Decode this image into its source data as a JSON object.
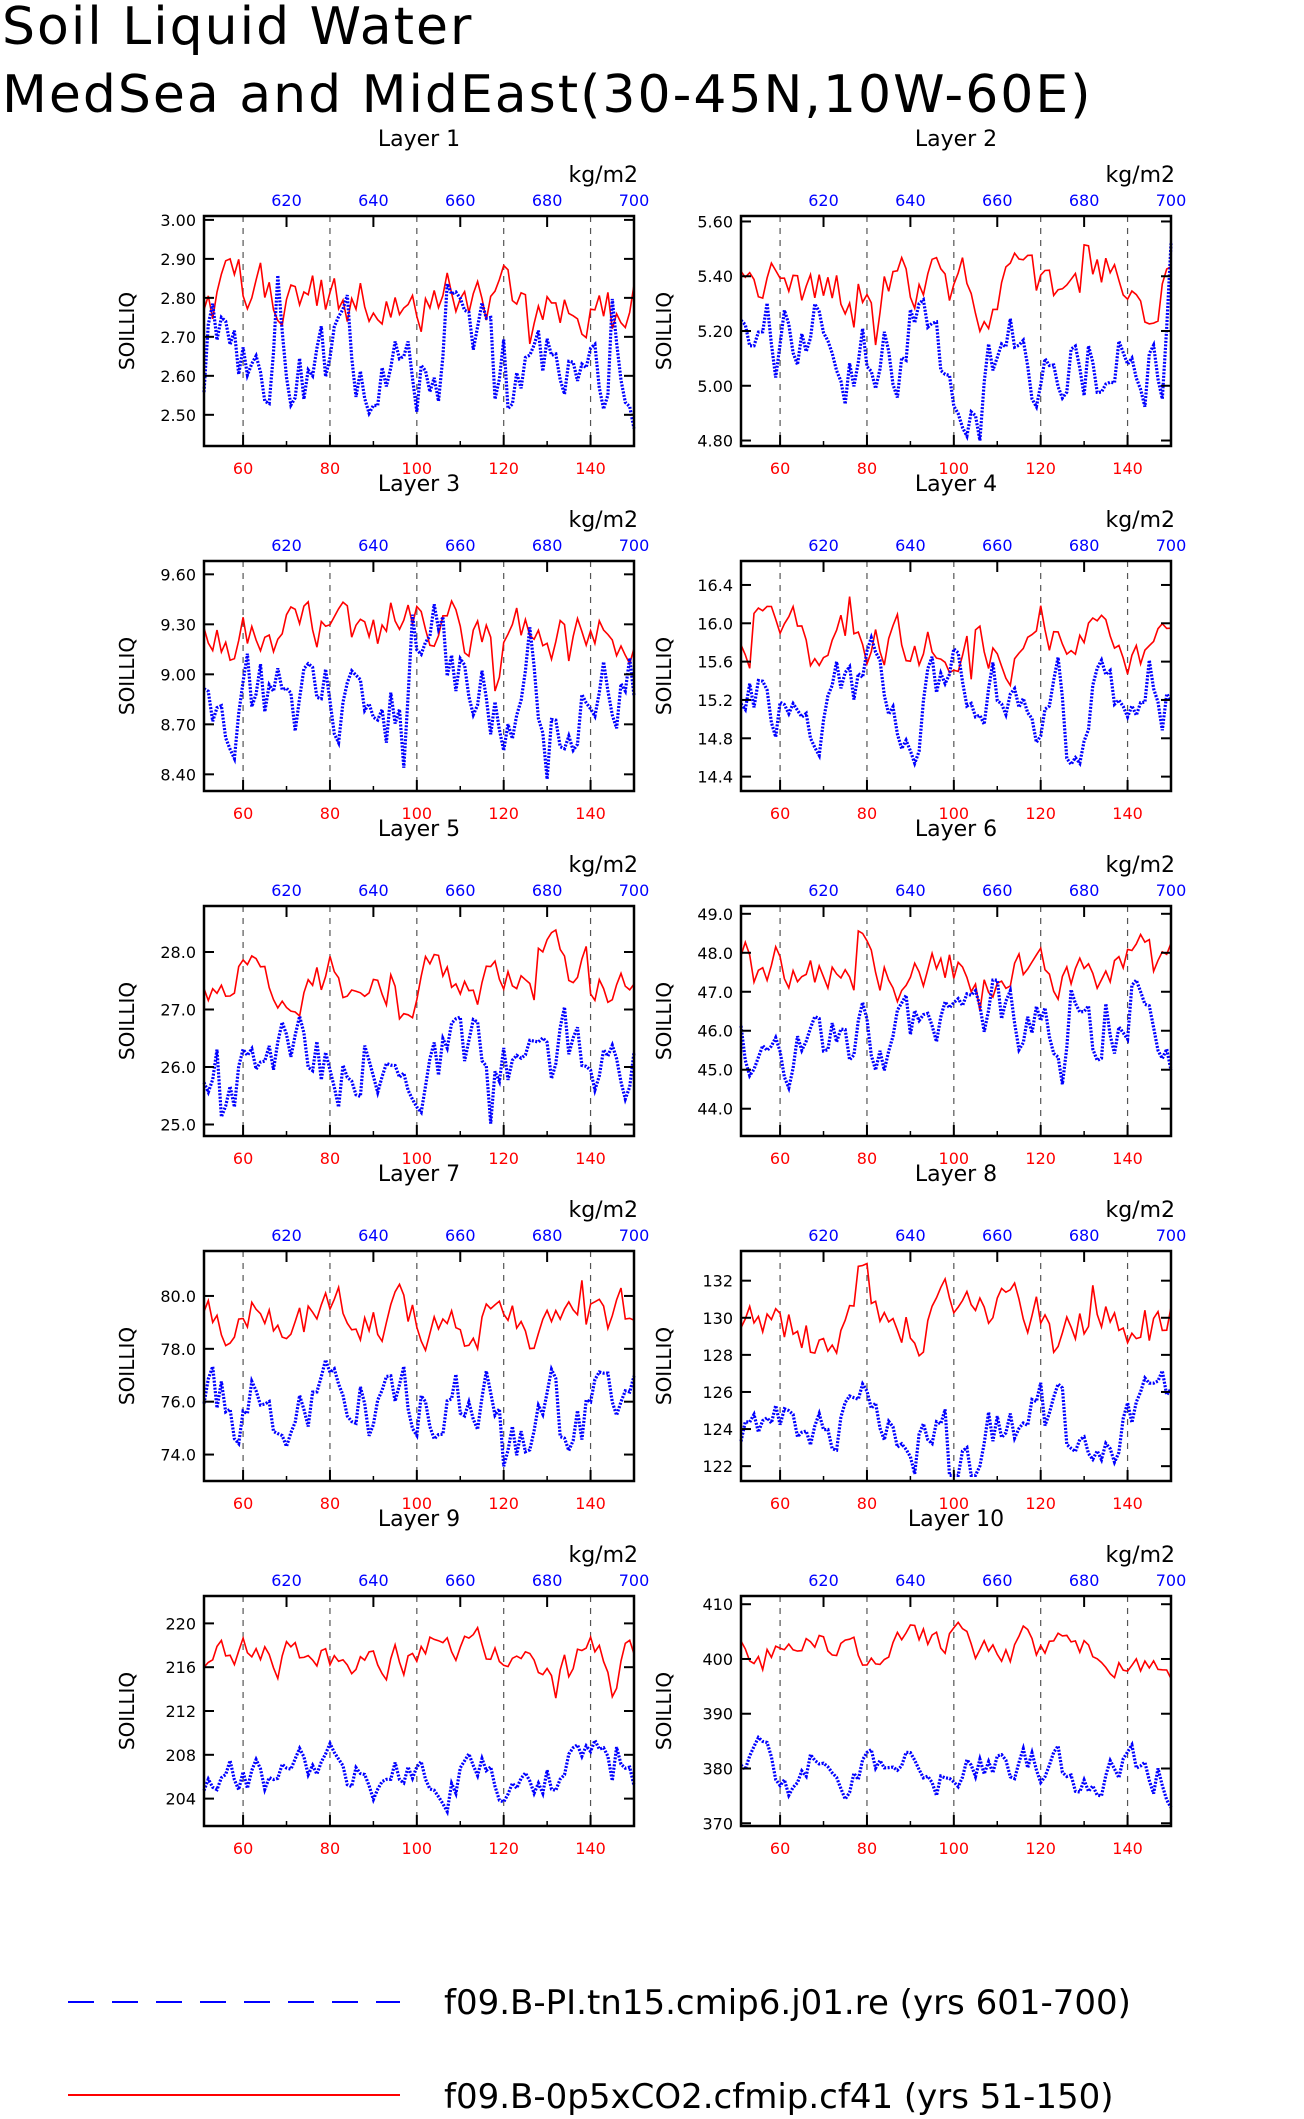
{
  "title_line1": "Soil Liquid Water",
  "title_line2": "MedSea and MidEast(30-45N,10W-60E)",
  "units": "kg/m2",
  "ylabel": "SOILLIQ",
  "colors": {
    "bottom_series": "#ff0000",
    "top_series": "#0000ff",
    "grid": "#000000"
  },
  "bottom_axis": {
    "range": [
      51,
      150
    ],
    "ticks": [
      60,
      80,
      100,
      120,
      140
    ]
  },
  "top_axis": {
    "range": [
      601,
      700
    ],
    "ticks": [
      620,
      640,
      660,
      680,
      700
    ]
  },
  "legend": {
    "blue_label": "f09.B-PI.tn15.cmip6.j01.re (yrs 601-700)",
    "red_label": "f09.B-0p5xCO2.cfmip.cf41 (yrs 51-150)"
  },
  "chart_data": [
    {
      "type": "line",
      "title": "Layer 1",
      "ylim": [
        2.42,
        3.01
      ],
      "yticks": [
        "2.50",
        "2.60",
        "2.70",
        "2.80",
        "2.90",
        "3.00"
      ],
      "series": [
        {
          "name": "f09.B-PI.tn15.cmip6.j01.re (yrs 601-700)",
          "axis": "top",
          "y0": 2.62,
          "spread": 0.11,
          "lo": 2.44,
          "hi": 2.93,
          "seed": 11
        },
        {
          "name": "f09.B-0p5xCO2.cfmip.cf41 (yrs 51-150)",
          "axis": "bottom",
          "y0": 2.8,
          "spread": 0.07,
          "lo": 2.58,
          "hi": 2.98,
          "seed": 12
        }
      ]
    },
    {
      "type": "line",
      "title": "Layer 2",
      "ylim": [
        4.78,
        5.62
      ],
      "yticks": [
        "4.80",
        "5.00",
        "5.20",
        "5.40",
        "5.60"
      ],
      "series": [
        {
          "name": "f09.B-PI.tn15.cmip6.j01.re (yrs 601-700)",
          "axis": "top",
          "y0": 5.12,
          "spread": 0.16,
          "lo": 4.8,
          "hi": 5.52,
          "seed": 21
        },
        {
          "name": "f09.B-0p5xCO2.cfmip.cf41 (yrs 51-150)",
          "axis": "bottom",
          "y0": 5.33,
          "spread": 0.1,
          "lo": 5.08,
          "hi": 5.6,
          "seed": 22
        }
      ]
    },
    {
      "type": "line",
      "title": "Layer 3",
      "ylim": [
        8.3,
        9.68
      ],
      "yticks": [
        "8.40",
        "8.70",
        "9.00",
        "9.30",
        "9.60"
      ],
      "series": [
        {
          "name": "f09.B-PI.tn15.cmip6.j01.re (yrs 601-700)",
          "axis": "top",
          "y0": 8.85,
          "spread": 0.25,
          "lo": 8.33,
          "hi": 9.42,
          "seed": 31
        },
        {
          "name": "f09.B-0p5xCO2.cfmip.cf41 (yrs 51-150)",
          "axis": "bottom",
          "y0": 9.22,
          "spread": 0.15,
          "lo": 8.9,
          "hi": 9.65,
          "seed": 32
        }
      ]
    },
    {
      "type": "line",
      "title": "Layer 4",
      "ylim": [
        14.25,
        16.65
      ],
      "yticks": [
        "14.4",
        "14.8",
        "15.2",
        "15.6",
        "16.0",
        "16.4"
      ],
      "series": [
        {
          "name": "f09.B-PI.tn15.cmip6.j01.re (yrs 601-700)",
          "axis": "top",
          "y0": 15.25,
          "spread": 0.38,
          "lo": 14.3,
          "hi": 16.0,
          "seed": 41
        },
        {
          "name": "f09.B-0p5xCO2.cfmip.cf41 (yrs 51-150)",
          "axis": "bottom",
          "y0": 15.8,
          "spread": 0.25,
          "lo": 15.3,
          "hi": 16.6,
          "seed": 42
        }
      ]
    },
    {
      "type": "line",
      "title": "Layer 5",
      "ylim": [
        24.8,
        28.8
      ],
      "yticks": [
        "25.0",
        "26.0",
        "27.0",
        "28.0"
      ],
      "series": [
        {
          "name": "f09.B-PI.tn15.cmip6.j01.re (yrs 601-700)",
          "axis": "top",
          "y0": 26.2,
          "spread": 0.65,
          "lo": 24.9,
          "hi": 27.6,
          "seed": 51
        },
        {
          "name": "f09.B-0p5xCO2.cfmip.cf41 (yrs 51-150)",
          "axis": "bottom",
          "y0": 27.6,
          "spread": 0.4,
          "lo": 26.6,
          "hi": 28.7,
          "seed": 52
        }
      ]
    },
    {
      "type": "line",
      "title": "Layer 6",
      "ylim": [
        43.3,
        49.2
      ],
      "yticks": [
        "44.0",
        "45.0",
        "46.0",
        "47.0",
        "48.0",
        "49.0"
      ],
      "series": [
        {
          "name": "f09.B-PI.tn15.cmip6.j01.re (yrs 601-700)",
          "axis": "top",
          "y0": 45.6,
          "spread": 0.9,
          "lo": 43.6,
          "hi": 47.3,
          "seed": 61
        },
        {
          "name": "f09.B-0p5xCO2.cfmip.cf41 (yrs 51-150)",
          "axis": "bottom",
          "y0": 47.5,
          "spread": 0.6,
          "lo": 46.0,
          "hi": 49.0,
          "seed": 62
        }
      ]
    },
    {
      "type": "line",
      "title": "Layer 7",
      "ylim": [
        73.0,
        81.7
      ],
      "yticks": [
        "74.0",
        "76.0",
        "78.0",
        "80.0"
      ],
      "series": [
        {
          "name": "f09.B-PI.tn15.cmip6.j01.re (yrs 601-700)",
          "axis": "top",
          "y0": 75.8,
          "spread": 1.3,
          "lo": 73.3,
          "hi": 78.4,
          "seed": 71
        },
        {
          "name": "f09.B-0p5xCO2.cfmip.cf41 (yrs 51-150)",
          "axis": "bottom",
          "y0": 79.2,
          "spread": 0.9,
          "lo": 77.0,
          "hi": 81.5,
          "seed": 72
        }
      ]
    },
    {
      "type": "line",
      "title": "Layer 8",
      "ylim": [
        121.2,
        133.6
      ],
      "yticks": [
        "122",
        "124",
        "126",
        "128",
        "130",
        "132"
      ],
      "series": [
        {
          "name": "f09.B-PI.tn15.cmip6.j01.re (yrs 601-700)",
          "axis": "top",
          "y0": 124.0,
          "spread": 1.7,
          "lo": 121.5,
          "hi": 128.3,
          "seed": 81
        },
        {
          "name": "f09.B-0p5xCO2.cfmip.cf41 (yrs 51-150)",
          "axis": "bottom",
          "y0": 129.8,
          "spread": 1.3,
          "lo": 126.5,
          "hi": 133.2,
          "seed": 82
        }
      ]
    },
    {
      "type": "line",
      "title": "Layer 9",
      "ylim": [
        201.5,
        222.5
      ],
      "yticks": [
        "204",
        "208",
        "212",
        "216",
        "220"
      ],
      "series": [
        {
          "name": "f09.B-PI.tn15.cmip6.j01.re (yrs 601-700)",
          "axis": "top",
          "y0": 206.5,
          "spread": 2.0,
          "lo": 202.5,
          "hi": 211.6,
          "seed": 91
        },
        {
          "name": "f09.B-0p5xCO2.cfmip.cf41 (yrs 51-150)",
          "axis": "bottom",
          "y0": 217.2,
          "spread": 1.6,
          "lo": 211.5,
          "hi": 221.8,
          "seed": 92
        }
      ]
    },
    {
      "type": "line",
      "title": "Layer 10",
      "ylim": [
        369.5,
        411.5
      ],
      "yticks": [
        "370",
        "380",
        "390",
        "400",
        "410"
      ],
      "series": [
        {
          "name": "f09.B-PI.tn15.cmip6.j01.re (yrs 601-700)",
          "axis": "top",
          "y0": 379.0,
          "spread": 3.8,
          "lo": 371.5,
          "hi": 389.0,
          "seed": 101
        },
        {
          "name": "f09.B-0p5xCO2.cfmip.cf41 (yrs 51-150)",
          "axis": "bottom",
          "y0": 401.5,
          "spread": 3.2,
          "lo": 390.5,
          "hi": 410.5,
          "seed": 102
        }
      ]
    }
  ]
}
